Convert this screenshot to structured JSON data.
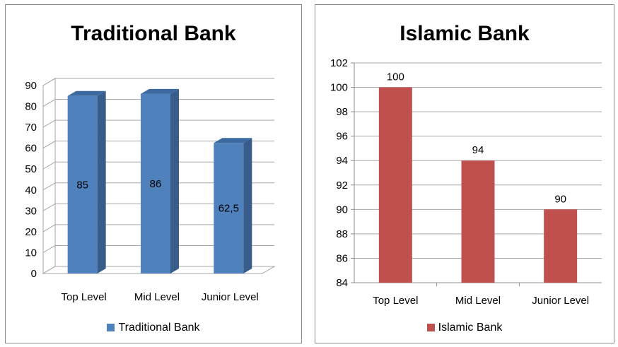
{
  "chart_data": [
    {
      "type": "bar",
      "title": "Traditional Bank",
      "categories": [
        "Top Level",
        "Mid Level",
        "Junior Level"
      ],
      "series": [
        {
          "name": "Traditional Bank",
          "values": [
            85,
            86,
            62.5
          ]
        }
      ],
      "data_labels": [
        "85",
        "86",
        "62,5"
      ],
      "ylim": [
        0,
        90
      ],
      "yticks": [
        "0",
        "10",
        "20",
        "30",
        "40",
        "50",
        "60",
        "70",
        "80",
        "90"
      ],
      "grid": true,
      "legend": "bottom",
      "color": "#4f81bd"
    },
    {
      "type": "bar",
      "title": "Islamic Bank",
      "categories": [
        "Top Level",
        "Mid Level",
        "Junior Level"
      ],
      "series": [
        {
          "name": "Islamic Bank",
          "values": [
            100,
            94,
            90
          ]
        }
      ],
      "data_labels": [
        "100",
        "94",
        "90"
      ],
      "ylim": [
        84,
        102
      ],
      "yticks": [
        "84",
        "86",
        "88",
        "90",
        "92",
        "94",
        "96",
        "98",
        "100",
        "102"
      ],
      "grid": true,
      "legend": "bottom",
      "color": "#c0504d"
    }
  ]
}
